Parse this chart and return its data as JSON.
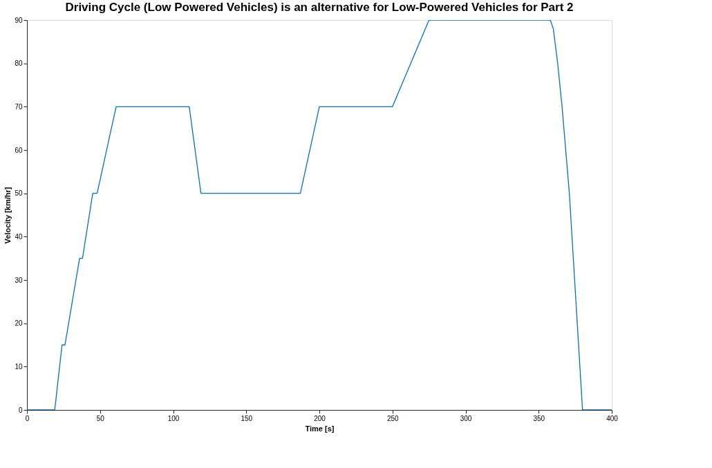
{
  "chart_data": {
    "type": "line",
    "title": "Driving Cycle (Low Powered Vehicles) is an alternative for Low-Powered Vehicles for Part 2",
    "xlabel": "Time [s]",
    "ylabel": "Velocity [km/hr]",
    "x": [
      0,
      19,
      24,
      26,
      36,
      38,
      45,
      48,
      61,
      111,
      119,
      187,
      200,
      250,
      275,
      358,
      360,
      363,
      366,
      371,
      380,
      400
    ],
    "series": [
      {
        "color": "#0072bd",
        "values": [
          0,
          0,
          15,
          15,
          35,
          35,
          50,
          50,
          70,
          70,
          50,
          50,
          70,
          70,
          90,
          90,
          88,
          80,
          70,
          50,
          0,
          0
        ]
      }
    ],
    "xlim": [
      0,
      400
    ],
    "xticks": [
      0,
      50,
      100,
      150,
      200,
      250,
      300,
      350,
      400
    ],
    "ylim": [
      0,
      90
    ],
    "yticks": [
      0,
      10,
      20,
      30,
      40,
      50,
      60,
      70,
      80,
      90
    ],
    "grid": false,
    "legend": false
  }
}
